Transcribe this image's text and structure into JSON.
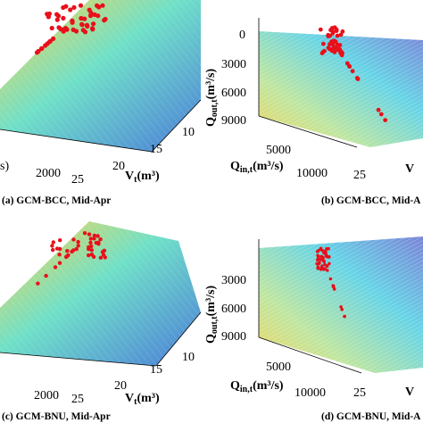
{
  "chart_data": [
    {
      "type": "scatter",
      "panel": "a",
      "caption": "(a) GCM-BCC, Mid-Apr",
      "x_ticks": [
        "2000",
        "25"
      ],
      "y_ticks": [
        "20",
        "15",
        "10"
      ],
      "xlabel_frag": "s)",
      "ylabel": "V",
      "ylabel_sub": "t",
      "ylabel_unit": "(m³)",
      "surface": "colormap plane (blue to yellow) with red observation points"
    },
    {
      "type": "scatter",
      "panel": "b",
      "caption": "(b) GCM-BCC, Mid-A",
      "z_ticks": [
        "0",
        "3000",
        "6000",
        "9000"
      ],
      "zlabel": "Q",
      "zlabel_sub": "out,t",
      "zlabel_unit": "(m³/s)",
      "x_ticks": [
        "5000",
        "10000"
      ],
      "xlabel": "Q",
      "xlabel_sub": "in,t",
      "xlabel_unit": "(m³/s)",
      "y_ticks": [
        "25"
      ],
      "ylabel_frag": "V"
    },
    {
      "type": "scatter",
      "panel": "c",
      "caption": "(c) GCM-BNU, Mid-Apr",
      "x_ticks": [
        "2000",
        "25"
      ],
      "y_ticks": [
        "20",
        "15",
        "10"
      ],
      "ylabel": "V",
      "ylabel_sub": "t",
      "ylabel_unit": "(m³)"
    },
    {
      "type": "scatter",
      "panel": "d",
      "caption": "(d) GCM-BNU, Mid-A",
      "z_ticks": [
        "3000",
        "6000",
        "9000"
      ],
      "zlabel": "Q",
      "zlabel_sub": "out,t",
      "zlabel_unit": "(m³/s)",
      "x_ticks": [
        "5000",
        "10000"
      ],
      "xlabel": "Q",
      "xlabel_sub": "in,t",
      "xlabel_unit": "(m³/s)",
      "y_ticks": [
        "25"
      ],
      "ylabel_frag": "V"
    }
  ]
}
